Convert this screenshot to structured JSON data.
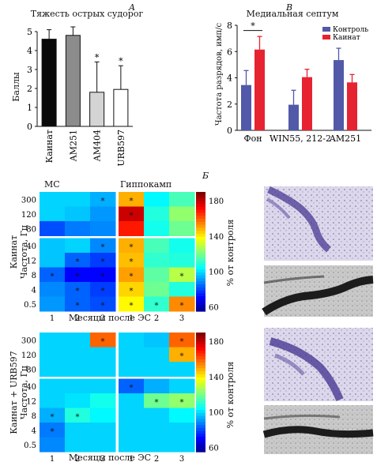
{
  "panel_labels": {
    "a": "А",
    "b": "Б",
    "v": "В"
  },
  "chart_data": [
    {
      "type": "bar",
      "title": "Тяжесть острых судорог",
      "ylabel": "Баллы",
      "ylim": [
        0,
        5
      ],
      "yticks": [
        "0",
        "1",
        "2",
        "3",
        "4",
        "5"
      ],
      "categories": [
        "Каинат",
        "AM251",
        "AM404",
        "URB597"
      ],
      "values": [
        4.6,
        4.8,
        1.8,
        1.95
      ],
      "errors": [
        0.5,
        0.45,
        1.6,
        1.25
      ],
      "significant": [
        "",
        "",
        "*",
        "*"
      ],
      "colors": [
        "#0a0a0a",
        "#8c8c8c",
        "#d4d4d4",
        "#ffffff"
      ]
    },
    {
      "type": "bar",
      "title": "Медиальная септум",
      "ylabel": "Частота разрядов, имп/с",
      "ylim": [
        0,
        8
      ],
      "yticks": [
        "0",
        "2",
        "4",
        "6",
        "8"
      ],
      "categories": [
        "Фон",
        "WIN55, 212-2",
        "AM251"
      ],
      "series": [
        {
          "name": "Контроль",
          "color": "#5159a8",
          "values": [
            3.45,
            1.95,
            5.35
          ],
          "errors": [
            1.1,
            1.1,
            0.9
          ]
        },
        {
          "name": "Каинат",
          "color": "#e62330",
          "values": [
            6.15,
            4.05,
            3.65
          ],
          "errors": [
            1.0,
            0.6,
            0.6
          ]
        }
      ],
      "significance": [
        {
          "category": "Фон",
          "label": "*"
        }
      ],
      "legend": "top-right"
    },
    {
      "type": "heatmap",
      "group": "Каинат",
      "row_labels": [
        "300",
        "120",
        "80",
        "40",
        "12",
        "8",
        "4",
        "0.5"
      ],
      "col_labels": [
        "1",
        "2",
        "3"
      ],
      "xlabel": "Месяцы после ЭС",
      "ylabel": "Частота, Гц",
      "panels": [
        {
          "title": "МС",
          "values": [
            [
              100,
              100,
              95
            ],
            [
              100,
              98,
              92
            ],
            [
              82,
              88,
              90
            ],
            [
              98,
              100,
              90
            ],
            [
              98,
              85,
              80
            ],
            [
              85,
              72,
              72
            ],
            [
              90,
              85,
              80
            ],
            [
              92,
              85,
              82
            ]
          ],
          "significant": [
            [
              0,
              0,
              1
            ],
            [
              0,
              0,
              0
            ],
            [
              0,
              0,
              0
            ],
            [
              0,
              0,
              1
            ],
            [
              0,
              1,
              1
            ],
            [
              1,
              1,
              1
            ],
            [
              0,
              1,
              1
            ],
            [
              0,
              1,
              1
            ]
          ]
        },
        {
          "title": "Гиппокамп",
          "values": [
            [
              150,
              105,
              115
            ],
            [
              180,
              110,
              125
            ],
            [
              170,
              108,
              120
            ],
            [
              150,
              115,
              108
            ],
            [
              148,
              112,
              110
            ],
            [
              152,
              118,
              130
            ],
            [
              145,
              120,
              110
            ],
            [
              140,
              112,
              155
            ]
          ],
          "significant": [
            [
              1,
              0,
              0
            ],
            [
              1,
              0,
              0
            ],
            [
              0,
              0,
              0
            ],
            [
              1,
              0,
              0
            ],
            [
              1,
              0,
              0
            ],
            [
              1,
              0,
              1
            ],
            [
              1,
              0,
              0
            ],
            [
              1,
              1,
              1
            ]
          ]
        }
      ],
      "colorbar": {
        "label": "% от контроля",
        "ticks": [
          "60",
          "100",
          "140",
          "180"
        ]
      }
    },
    {
      "type": "heatmap",
      "group": "Каинат + URB597",
      "row_labels": [
        "300",
        "120",
        "80",
        "40",
        "12",
        "8",
        "4",
        "0.5"
      ],
      "col_labels": [
        "1",
        "2",
        "3"
      ],
      "xlabel": "Месяцы после ЭС",
      "ylabel": "Частота, Гц",
      "panels": [
        {
          "title": "",
          "values": [
            [
              100,
              100,
              160
            ],
            [
              100,
              100,
              100
            ],
            [
              100,
              100,
              100
            ],
            [
              100,
              100,
              100
            ],
            [
              100,
              102,
              108
            ],
            [
              95,
              110,
              105
            ],
            [
              88,
              100,
              100
            ],
            [
              90,
              100,
              100
            ]
          ],
          "significant": [
            [
              0,
              0,
              1
            ],
            [
              0,
              0,
              0
            ],
            [
              0,
              0,
              0
            ],
            [
              0,
              0,
              0
            ],
            [
              0,
              0,
              0
            ],
            [
              1,
              1,
              0
            ],
            [
              1,
              0,
              0
            ],
            [
              0,
              0,
              0
            ]
          ]
        },
        {
          "title": "",
          "values": [
            [
              100,
              98,
              160
            ],
            [
              100,
              100,
              150
            ],
            [
              100,
              100,
              100
            ],
            [
              85,
              95,
              100
            ],
            [
              100,
              120,
              125
            ],
            [
              100,
              100,
              105
            ],
            [
              100,
              100,
              100
            ],
            [
              100,
              100,
              100
            ]
          ],
          "significant": [
            [
              0,
              0,
              1
            ],
            [
              0,
              0,
              1
            ],
            [
              0,
              0,
              0
            ],
            [
              1,
              0,
              0
            ],
            [
              0,
              1,
              1
            ],
            [
              0,
              0,
              0
            ],
            [
              0,
              0,
              0
            ],
            [
              0,
              0,
              0
            ]
          ]
        }
      ],
      "colorbar": {
        "label": "% от контроля",
        "ticks": [
          "60",
          "100",
          "140",
          "180"
        ]
      }
    }
  ]
}
